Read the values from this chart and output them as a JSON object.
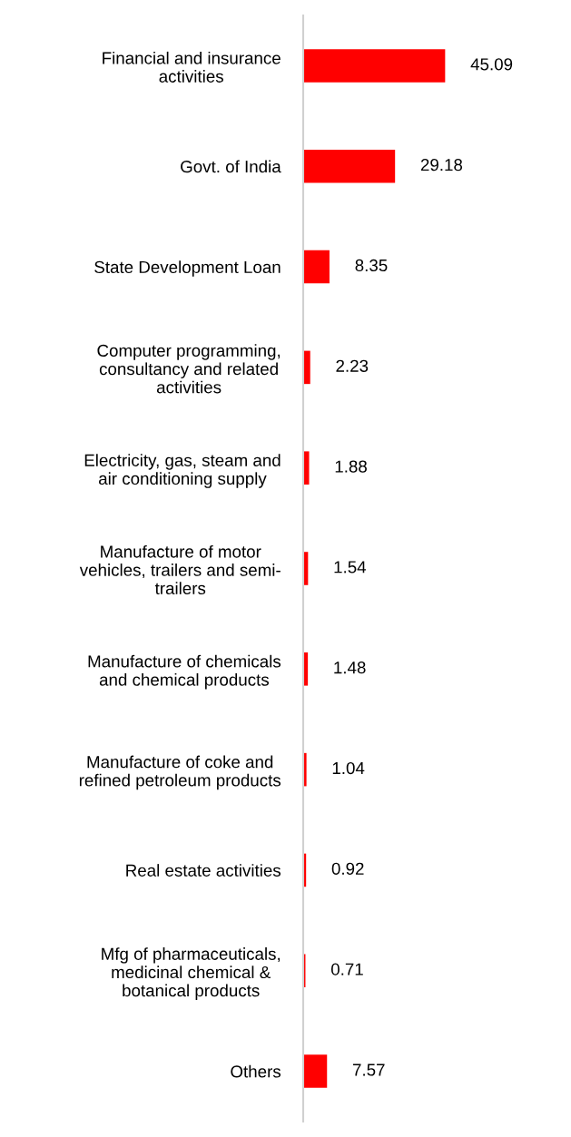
{
  "chart_data": {
    "type": "bar",
    "orientation": "horizontal",
    "categories": [
      "Financial and insurance\nactivities",
      "Govt. of India",
      "State Development Loan",
      "Computer programming,\nconsultancy and related\nactivities",
      "Electricity, gas, steam and\nair conditioning supply",
      "Manufacture of motor\nvehicles, trailers and semi-\ntrailers",
      "Manufacture of chemicals\nand chemical products",
      "Manufacture of coke and\nrefined petroleum products",
      "Real estate activities",
      "Mfg of pharmaceuticals,\nmedicinal chemical &\nbotanical products",
      "Others"
    ],
    "values": [
      45.09,
      29.18,
      8.35,
      2.23,
      1.88,
      1.54,
      1.48,
      1.04,
      0.92,
      0.71,
      7.57
    ],
    "color": "#ff0000",
    "data_labels": true,
    "grid": false,
    "tick_labels": "y"
  }
}
